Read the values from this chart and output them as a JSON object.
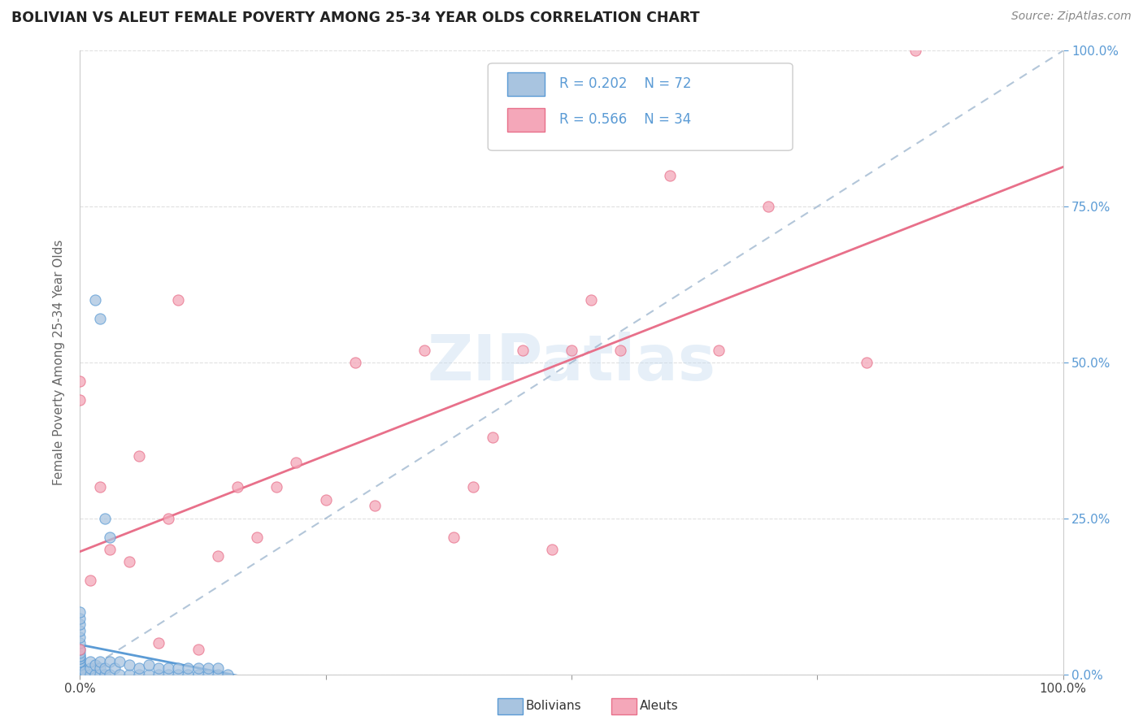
{
  "title": "BOLIVIAN VS ALEUT FEMALE POVERTY AMONG 25-34 YEAR OLDS CORRELATION CHART",
  "source": "Source: ZipAtlas.com",
  "ylabel": "Female Poverty Among 25-34 Year Olds",
  "ylabel_right_ticks": [
    "0.0%",
    "25.0%",
    "50.0%",
    "75.0%",
    "100.0%"
  ],
  "ylabel_right_vals": [
    0.0,
    0.25,
    0.5,
    0.75,
    1.0
  ],
  "legend_bolivians": "Bolivians",
  "legend_aleuts": "Aleuts",
  "legend_bolivians_R": "R = 0.202",
  "legend_bolivians_N": "N = 72",
  "legend_aleuts_R": "R = 0.566",
  "legend_aleuts_N": "N = 34",
  "color_bolivians_fill": "#a8c4e0",
  "color_bolivians_edge": "#5b9bd5",
  "color_bolivians_line": "#5b9bd5",
  "color_aleuts_fill": "#f4a7b9",
  "color_aleuts_edge": "#e8708a",
  "color_aleuts_line": "#e8708a",
  "color_dashed": "#a0b8d0",
  "bolivians_x": [
    0.0,
    0.0,
    0.0,
    0.0,
    0.0,
    0.0,
    0.0,
    0.0,
    0.0,
    0.0,
    0.0,
    0.0,
    0.0,
    0.0,
    0.0,
    0.0,
    0.0,
    0.0,
    0.0,
    0.0,
    0.0,
    0.0,
    0.0,
    0.0,
    0.0,
    0.0,
    0.0,
    0.0,
    0.0,
    0.0,
    0.005,
    0.005,
    0.01,
    0.01,
    0.01,
    0.015,
    0.015,
    0.02,
    0.02,
    0.02,
    0.025,
    0.025,
    0.03,
    0.03,
    0.035,
    0.04,
    0.04,
    0.05,
    0.05,
    0.06,
    0.06,
    0.07,
    0.07,
    0.08,
    0.08,
    0.09,
    0.09,
    0.1,
    0.1,
    0.11,
    0.11,
    0.12,
    0.12,
    0.13,
    0.13,
    0.14,
    0.14,
    0.15,
    0.015,
    0.02,
    0.025,
    0.03
  ],
  "bolivians_y": [
    0.0,
    0.0,
    0.0,
    0.0,
    0.0,
    0.0,
    0.0,
    0.0,
    0.0,
    0.005,
    0.005,
    0.01,
    0.01,
    0.01,
    0.015,
    0.015,
    0.02,
    0.02,
    0.025,
    0.025,
    0.03,
    0.03,
    0.035,
    0.04,
    0.05,
    0.06,
    0.07,
    0.08,
    0.09,
    0.1,
    0.0,
    0.005,
    0.0,
    0.01,
    0.02,
    0.0,
    0.015,
    0.0,
    0.01,
    0.02,
    0.0,
    0.01,
    0.0,
    0.02,
    0.01,
    0.0,
    0.02,
    0.0,
    0.015,
    0.0,
    0.01,
    0.0,
    0.015,
    0.0,
    0.01,
    0.0,
    0.01,
    0.0,
    0.01,
    0.0,
    0.01,
    0.0,
    0.01,
    0.0,
    0.01,
    0.0,
    0.01,
    0.0,
    0.6,
    0.57,
    0.25,
    0.22
  ],
  "aleuts_x": [
    0.0,
    0.0,
    0.0,
    0.01,
    0.02,
    0.03,
    0.05,
    0.06,
    0.08,
    0.09,
    0.1,
    0.12,
    0.14,
    0.16,
    0.18,
    0.2,
    0.22,
    0.25,
    0.28,
    0.3,
    0.35,
    0.38,
    0.4,
    0.42,
    0.45,
    0.48,
    0.5,
    0.52,
    0.55,
    0.6,
    0.65,
    0.7,
    0.8,
    0.85
  ],
  "aleuts_y": [
    0.04,
    0.44,
    0.47,
    0.15,
    0.3,
    0.2,
    0.18,
    0.35,
    0.05,
    0.25,
    0.6,
    0.04,
    0.19,
    0.3,
    0.22,
    0.3,
    0.34,
    0.28,
    0.5,
    0.27,
    0.52,
    0.22,
    0.3,
    0.38,
    0.52,
    0.2,
    0.52,
    0.6,
    0.52,
    0.8,
    0.52,
    0.75,
    0.5,
    1.0
  ],
  "xlim": [
    0.0,
    1.0
  ],
  "ylim": [
    0.0,
    1.0
  ],
  "bol_line_x0": 0.0,
  "bol_line_x1": 0.15,
  "ale_line_intercept": 0.18,
  "ale_line_slope": 0.55
}
